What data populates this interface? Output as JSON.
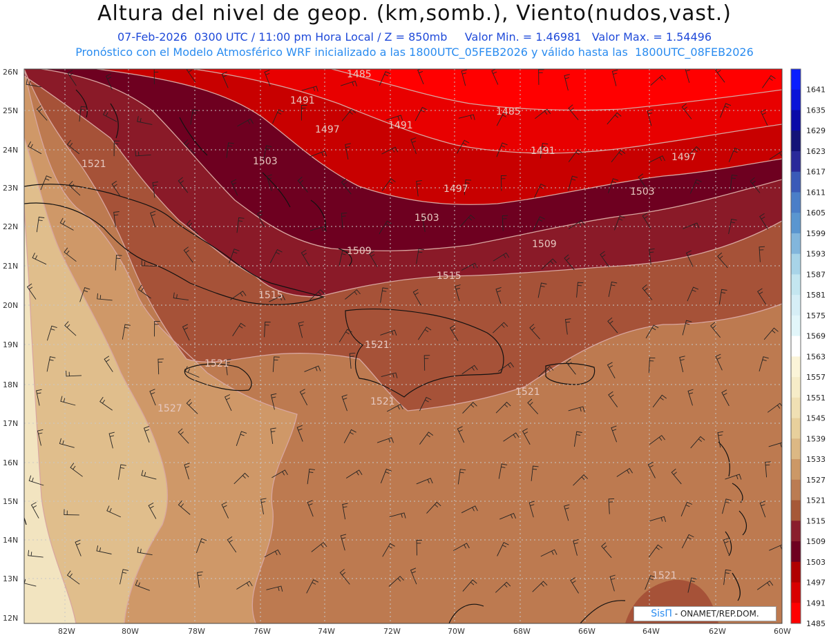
{
  "header": {
    "title": "Altura del nivel de geop. (km,somb.), Viento(nudos,vast.)",
    "subtitle_line1": "07-Feb-2026  0300 UTC / 11:00 pm Hora Local / Z = 850mb     Valor Min. = 1.46981   Valor Max. = 1.54496",
    "subtitle_line2": "Pronóstico con el Modelo Atmosférico WRF inicializado a las 1800UTC_05FEB2026 y válido hasta las  1800UTC_08FEB2026"
  },
  "map": {
    "lat_labels": [
      "26N",
      "25N",
      "24N",
      "23N",
      "22N",
      "21N",
      "20N",
      "19N",
      "18N",
      "17N",
      "16N",
      "15N",
      "14N",
      "13N",
      "12N"
    ],
    "lon_labels": [
      "82W",
      "80W",
      "78W",
      "76W",
      "74W",
      "72W",
      "70W",
      "68W",
      "66W",
      "64W",
      "62W",
      "60W"
    ],
    "contour_labels": [
      "1485",
      "1491",
      "1497",
      "1485",
      "1491",
      "1491",
      "1497",
      "1503",
      "1497",
      "1503",
      "1509",
      "1503",
      "1509",
      "1521",
      "1515",
      "1515",
      "1521",
      "1521",
      "1521",
      "1521",
      "1527",
      "1521"
    ],
    "colors": {
      "c1485": "#ff0000",
      "c1491": "#e80000",
      "c1497": "#c80000",
      "c1503": "#6e0020",
      "c1509": "#8a1a28",
      "c1515": "#a65238",
      "c1521": "#bd7a50",
      "c1527": "#cf9868",
      "c1533": "#e0be8c",
      "c1539": "#f2e4c0"
    }
  },
  "colorbar": {
    "labels": [
      "1641",
      "1635",
      "1629",
      "1623",
      "1617",
      "1611",
      "1605",
      "1599",
      "1593",
      "1587",
      "1581",
      "1575",
      "1569",
      "1563",
      "1557",
      "1551",
      "1545",
      "1539",
      "1533",
      "1527",
      "1521",
      "1515",
      "1509",
      "1503",
      "1497",
      "1491",
      "1485"
    ],
    "colors": [
      "#0a1eff",
      "#0a14d8",
      "#0a0aa8",
      "#141478",
      "#2a2a9a",
      "#3a5ab8",
      "#4a7ec8",
      "#5a96d0",
      "#82b6dc",
      "#a8d4e8",
      "#c4e6f0",
      "#d6eef6",
      "#e2f6fa",
      "#ffffff",
      "#fbf4d8",
      "#f6ecc8",
      "#f0e0b4",
      "#e8d09c",
      "#dcb884",
      "#cc9866",
      "#bb7c52",
      "#a65838",
      "#8a1e2c",
      "#6e0020",
      "#b00000",
      "#d80000",
      "#ff0000"
    ]
  },
  "credit": {
    "brand": "SisΠ",
    "text": "- ONAMET/REP.DOM."
  }
}
